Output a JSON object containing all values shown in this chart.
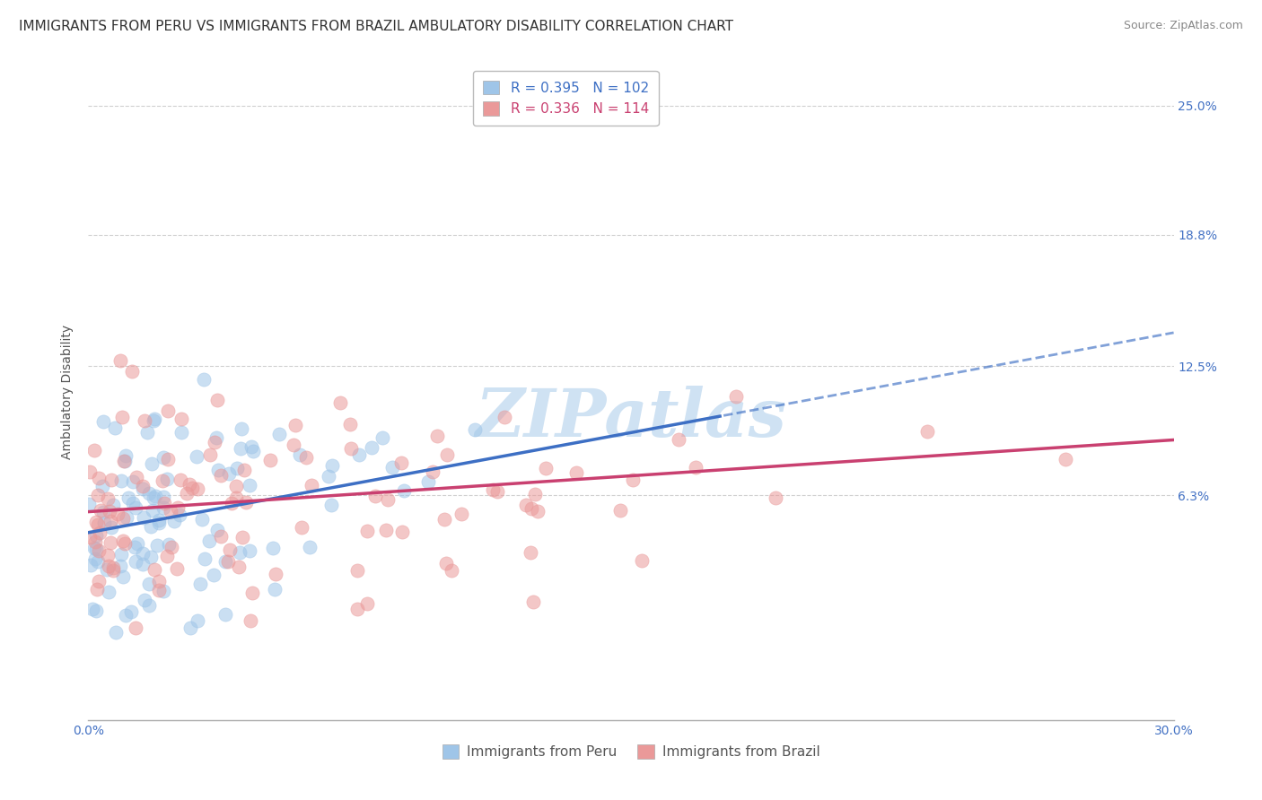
{
  "title": "IMMIGRANTS FROM PERU VS IMMIGRANTS FROM BRAZIL AMBULATORY DISABILITY CORRELATION CHART",
  "source": "Source: ZipAtlas.com",
  "ylabel": "Ambulatory Disability",
  "xlim": [
    0.0,
    0.3
  ],
  "ylim": [
    -0.045,
    0.27
  ],
  "yticks": [
    0.063,
    0.125,
    0.188,
    0.25
  ],
  "ytick_labels": [
    "6.3%",
    "12.5%",
    "18.8%",
    "25.0%"
  ],
  "peru_color": "#9fc5e8",
  "brazil_color": "#ea9999",
  "peru_line_color": "#3d6fc4",
  "brazil_line_color": "#c94070",
  "peru_R": 0.395,
  "peru_N": 102,
  "brazil_R": 0.336,
  "brazil_N": 114,
  "watermark_color": "#cfe2f3",
  "legend_label_peru": "Immigrants from Peru",
  "legend_label_brazil": "Immigrants from Brazil",
  "title_fontsize": 11,
  "source_fontsize": 9,
  "axis_label_fontsize": 10,
  "tick_fontsize": 10,
  "legend_fontsize": 11,
  "ytick_right_color": "#4472c4",
  "background_color": "#ffffff",
  "grid_color": "#d0d0d0",
  "peru_trend_intercept": 0.045,
  "peru_trend_slope": 0.32,
  "brazil_trend_intercept": 0.055,
  "brazil_trend_slope": 0.115
}
